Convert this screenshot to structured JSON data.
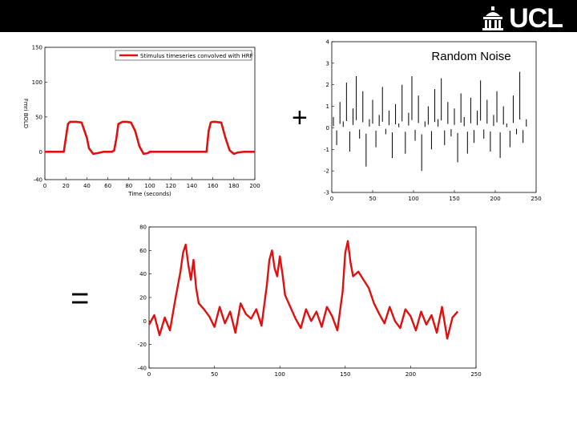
{
  "header": {
    "logo_text": "UCL",
    "logo_icon": "ucl-portico-icon",
    "background": "#000000"
  },
  "operators": {
    "plus": "+",
    "equals": "="
  },
  "colors": {
    "signal": "#e01010",
    "noise": "#000000",
    "axis": "#000000"
  },
  "chart_data": [
    {
      "type": "line",
      "legend": "Stimulus timeseries convolved with HRF",
      "ylabel": "Fmri BOLD",
      "xlabel": "Time (seconds)",
      "x": [
        0,
        2,
        8,
        12,
        18,
        22,
        24,
        30,
        35,
        40,
        42,
        46,
        50,
        56,
        60,
        64,
        66,
        68,
        70,
        74,
        78,
        82,
        86,
        90,
        94,
        98,
        100,
        102,
        104,
        108,
        112,
        118,
        124,
        130,
        136,
        140,
        146,
        150,
        154,
        156,
        158,
        160,
        162,
        168,
        172,
        176,
        180,
        184,
        190,
        200
      ],
      "values": [
        0,
        0,
        0,
        0,
        0,
        40,
        43,
        43,
        42,
        20,
        5,
        -3,
        -2,
        0,
        0,
        0,
        2,
        18,
        40,
        43,
        43,
        42,
        30,
        8,
        -3,
        -2,
        0,
        0,
        0,
        0,
        0,
        0,
        0,
        0,
        0,
        0,
        0,
        0,
        0,
        30,
        42,
        43,
        43,
        42,
        20,
        2,
        -3,
        -1,
        0,
        0
      ],
      "xlim": [
        0,
        200
      ],
      "ylim": [
        -40,
        150
      ],
      "xticks": [
        "0",
        "20",
        "40",
        "60",
        "80",
        "100",
        "120",
        "140",
        "160",
        "180",
        "200"
      ],
      "yticks": [
        "-40",
        "0",
        "50",
        "100",
        "150"
      ]
    },
    {
      "type": "bar",
      "title": "Random Noise",
      "xlim": [
        0,
        250
      ],
      "ylim": [
        -3,
        4
      ],
      "xticks": [
        "0",
        "50",
        "100",
        "150",
        "200",
        "250"
      ],
      "yticks": [
        "-3",
        "-2",
        "-1",
        "0",
        "1",
        "2",
        "3",
        "4"
      ],
      "x": [
        2,
        6,
        10,
        14,
        18,
        22,
        26,
        30,
        34,
        38,
        42,
        46,
        50,
        54,
        58,
        62,
        66,
        70,
        74,
        78,
        82,
        86,
        90,
        94,
        98,
        102,
        106,
        110,
        114,
        118,
        122,
        126,
        130,
        134,
        138,
        142,
        146,
        150,
        154,
        158,
        162,
        166,
        170,
        174,
        178,
        182,
        186,
        190,
        194,
        198,
        202,
        206,
        210,
        214,
        218,
        222,
        226,
        230,
        234,
        238
      ],
      "values": [
        0.5,
        -0.8,
        1.2,
        0.3,
        2.1,
        -1.1,
        0.9,
        2.4,
        -0.5,
        1.7,
        -1.8,
        0.4,
        1.3,
        -0.9,
        0.6,
        1.9,
        -0.3,
        0.8,
        -1.4,
        1.1,
        0.2,
        2.0,
        -1.2,
        0.7,
        2.4,
        -0.6,
        1.5,
        -2.0,
        0.3,
        1.0,
        -1.0,
        1.8,
        0.4,
        2.3,
        -0.8,
        1.2,
        -0.4,
        0.9,
        -1.6,
        1.6,
        0.5,
        -1.2,
        1.4,
        -0.7,
        0.8,
        2.2,
        -0.5,
        1.3,
        -1.1,
        0.6,
        1.7,
        -1.4,
        1.0,
        0.2,
        -0.9,
        1.5,
        -0.3,
        2.6,
        -0.7,
        0.4
      ]
    },
    {
      "type": "line",
      "xlim": [
        0,
        250
      ],
      "ylim": [
        -40,
        80
      ],
      "xticks": [
        "0",
        "50",
        "100",
        "150",
        "200",
        "250"
      ],
      "yticks": [
        "-40",
        "-20",
        "0",
        "20",
        "40",
        "60",
        "80"
      ],
      "x": [
        0,
        4,
        8,
        12,
        16,
        20,
        24,
        26,
        28,
        30,
        32,
        34,
        36,
        38,
        42,
        46,
        50,
        54,
        58,
        62,
        66,
        70,
        74,
        78,
        82,
        86,
        90,
        92,
        94,
        96,
        98,
        100,
        102,
        104,
        108,
        112,
        116,
        120,
        124,
        128,
        132,
        136,
        140,
        144,
        148,
        150,
        152,
        154,
        156,
        160,
        164,
        168,
        172,
        176,
        180,
        184,
        188,
        192,
        196,
        200,
        204,
        208,
        212,
        216,
        220,
        224,
        228,
        232,
        236
      ],
      "values": [
        -3,
        5,
        -12,
        3,
        -8,
        18,
        42,
        58,
        65,
        48,
        35,
        52,
        28,
        15,
        10,
        4,
        -5,
        12,
        -2,
        8,
        -10,
        15,
        6,
        2,
        10,
        -4,
        30,
        52,
        60,
        45,
        38,
        55,
        40,
        22,
        12,
        2,
        -6,
        10,
        0,
        8,
        -5,
        12,
        4,
        -8,
        25,
        58,
        68,
        50,
        38,
        42,
        35,
        28,
        15,
        6,
        -2,
        12,
        0,
        -6,
        10,
        4,
        -8,
        8,
        -3,
        5,
        -10,
        12,
        -15,
        3,
        8
      ]
    }
  ]
}
